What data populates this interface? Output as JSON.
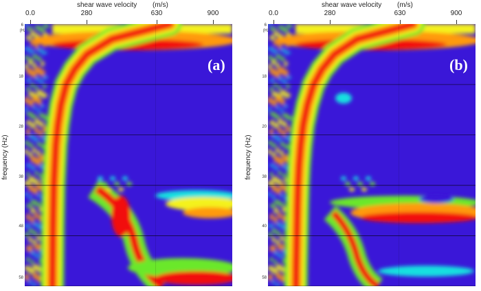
{
  "chart_data": [
    {
      "type": "heatmap",
      "panel_label": "(a)",
      "xlabel": "shear wave velocity",
      "xunit": "(m/s)",
      "ylabel": "frequency",
      "yunit": "(Hz)",
      "x_ticks": [
        "0.0",
        "280",
        "630",
        "900"
      ],
      "y_ticks": [
        "6",
        "18",
        "28",
        "38",
        "48",
        "58"
      ],
      "xlim": [
        0,
        1000
      ],
      "ylim": [
        6,
        58
      ],
      "colormap": [
        "#3a17d8",
        "#1f7bff",
        "#18e0e0",
        "#6be82c",
        "#f4f21a",
        "#ff9a10",
        "#f21010"
      ],
      "dispersion_ridge": {
        "frequency": [
          6,
          9,
          12,
          15,
          18,
          22,
          26,
          30,
          34,
          38,
          42,
          46,
          50,
          54,
          58
        ],
        "velocity": [
          700,
          420,
          300,
          240,
          200,
          175,
          160,
          150,
          145,
          140,
          138,
          136,
          135,
          134,
          133
        ]
      }
    },
    {
      "type": "heatmap",
      "panel_label": "(b)",
      "xlabel": "shear wave velocity",
      "xunit": "(m/s)",
      "ylabel": "frequency",
      "yunit": "(Hz)",
      "x_ticks": [
        "0.0",
        "280",
        "630",
        "900"
      ],
      "y_ticks": [
        "6",
        "18",
        "20",
        "38",
        "40",
        "58"
      ],
      "xlim": [
        0,
        1000
      ],
      "ylim": [
        6,
        58
      ],
      "colormap": [
        "#3a17d8",
        "#1f7bff",
        "#18e0e0",
        "#6be82c",
        "#f4f21a",
        "#ff9a10",
        "#f21010"
      ],
      "dispersion_ridge": {
        "frequency": [
          6,
          9,
          12,
          15,
          18,
          22,
          26,
          30,
          34,
          38,
          42,
          46,
          50,
          54,
          58
        ],
        "velocity": [
          700,
          430,
          320,
          260,
          220,
          190,
          170,
          158,
          150,
          145,
          142,
          140,
          138,
          136,
          135
        ]
      }
    }
  ]
}
